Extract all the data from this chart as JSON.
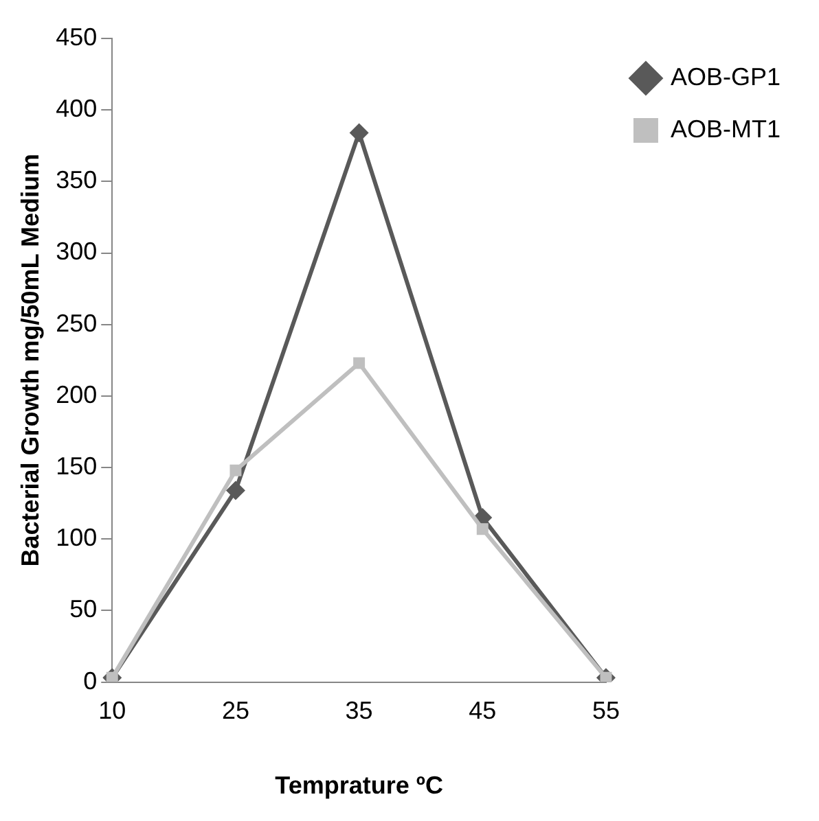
{
  "chart_data": {
    "type": "line",
    "xlabel": "Temprature ºC",
    "ylabel": "Bacterial Growth mg/50mL Medium",
    "categories": [
      "10",
      "25",
      "35",
      "45",
      "55"
    ],
    "series": [
      {
        "name": "AOB-GP1",
        "color": "#595959",
        "marker": "diamond",
        "values": [
          3,
          134,
          384,
          115,
          3
        ]
      },
      {
        "name": "AOB-MT1",
        "color": "#bfbfbf",
        "marker": "square",
        "values": [
          3,
          148,
          223,
          107,
          3
        ]
      }
    ],
    "ylim": [
      0,
      450
    ],
    "yticks": [
      0,
      50,
      100,
      150,
      200,
      250,
      300,
      350,
      400,
      450
    ],
    "grid": false,
    "legend": "right",
    "line_style": "solid"
  }
}
